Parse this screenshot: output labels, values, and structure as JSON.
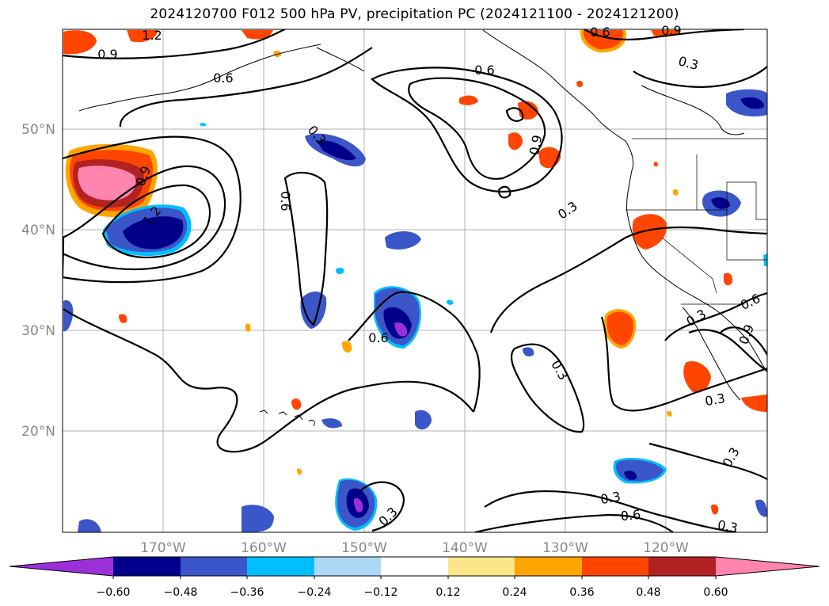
{
  "title": "2024120700 F012 500 hPa PV, precipitation PC (2024121100 - 2024121200)",
  "lat_labels": [
    "50°N",
    "40°N",
    "30°N",
    "20°N"
  ],
  "lon_labels": [
    "170°W",
    "160°W",
    "150°W",
    "140°W",
    "130°W",
    "120°W"
  ],
  "contour_labels": [
    "1.2",
    "0.9",
    "0.6",
    "0.3"
  ],
  "colorbar": {
    "colors": [
      "#9b30d9",
      "#00008b",
      "#3a56c8",
      "#00bfff",
      "#add8f5",
      "#ffffff",
      "#fde68a",
      "#ffa500",
      "#ff4500",
      "#b22222",
      "#ff85b0"
    ],
    "tick_labels": [
      "−0.60",
      "−0.48",
      "−0.36",
      "−0.24",
      "−0.12",
      "0.12",
      "0.24",
      "0.36",
      "0.48",
      "0.60"
    ]
  }
}
